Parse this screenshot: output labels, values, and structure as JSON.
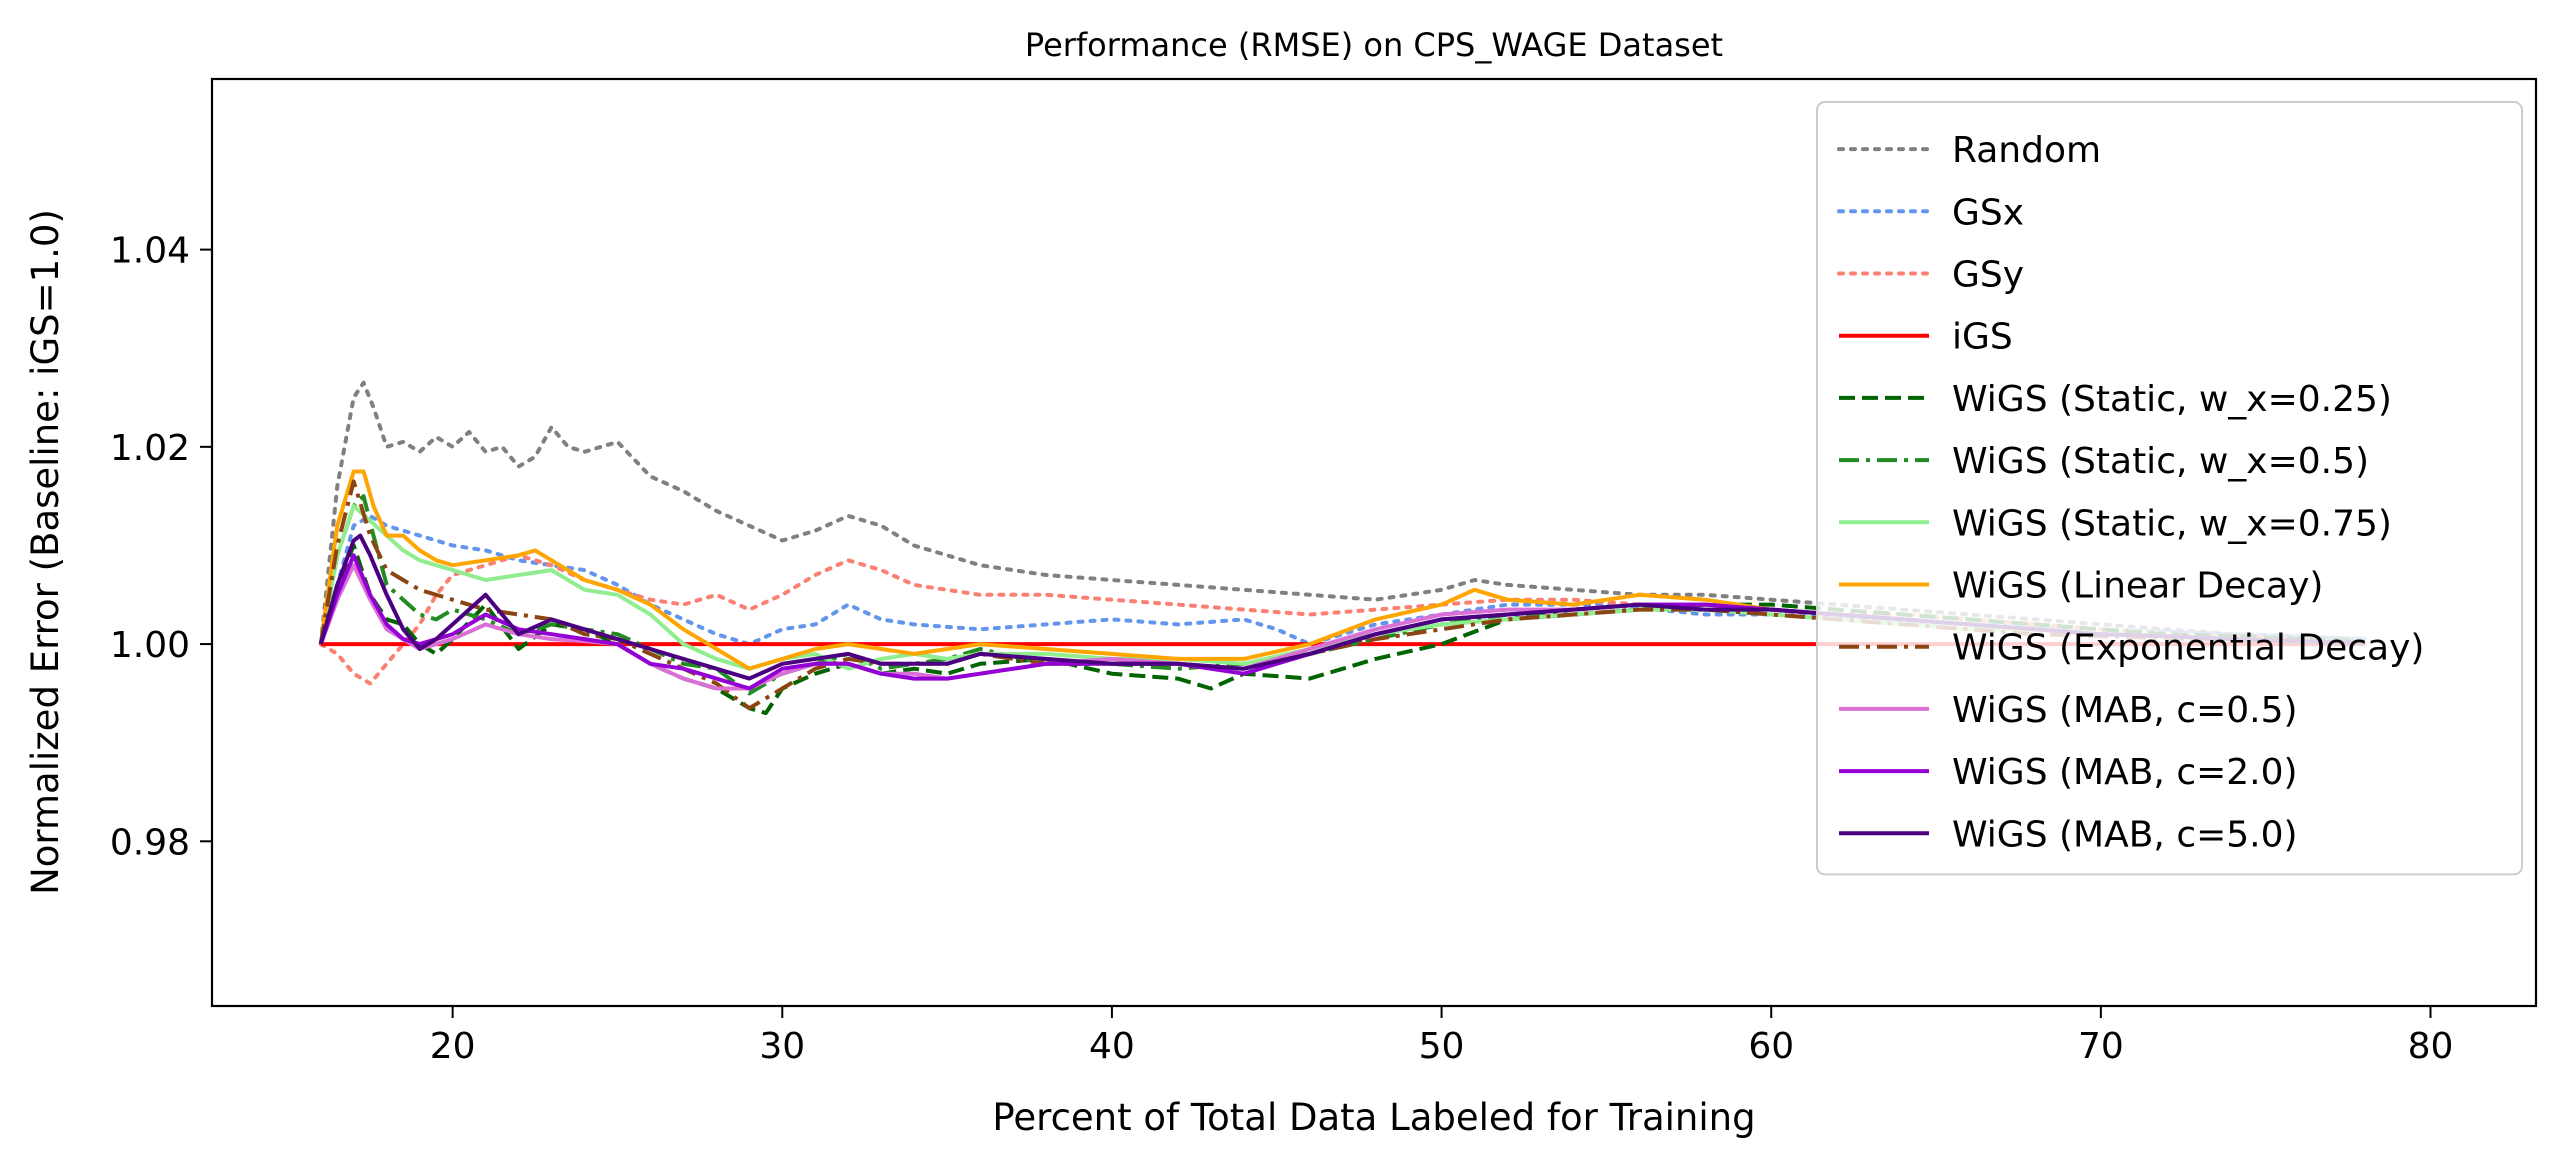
{
  "chart_data": {
    "type": "line",
    "title": "Performance (RMSE) on CPS_WAGE Dataset",
    "xlabel": "Percent of Total Data Labeled for Training",
    "ylabel": "Normalized Error (Baseline: iGS=1.0)",
    "xlim": [
      12.7,
      83.2
    ],
    "ylim": [
      0.9633,
      1.0573
    ],
    "xticks": [
      20,
      30,
      40,
      50,
      60,
      70,
      80
    ],
    "xtick_labels": [
      "20",
      "30",
      "40",
      "50",
      "60",
      "70",
      "80"
    ],
    "yticks": [
      0.98,
      1.0,
      1.02,
      1.04
    ],
    "ytick_labels": [
      "0.98",
      "1.00",
      "1.02",
      "1.04"
    ],
    "grid": false,
    "legend_position": "top-right",
    "series": [
      {
        "name": "Random",
        "color": "#808080",
        "dash": "dotted",
        "x": [
          16,
          16.5,
          17,
          17.3,
          17.6,
          18,
          18.5,
          19,
          19.5,
          20,
          20.5,
          21,
          21.5,
          22,
          22.5,
          23,
          23.5,
          24,
          25,
          26,
          27,
          28,
          29,
          30,
          31,
          32,
          33,
          34,
          35,
          36,
          38,
          40,
          42,
          44,
          46,
          48,
          50,
          51,
          52,
          54,
          56,
          58,
          60,
          62,
          64,
          66,
          68,
          70,
          72,
          74,
          76,
          78
        ],
        "y": [
          1.0,
          1.016,
          1.025,
          1.0265,
          1.024,
          1.02,
          1.0205,
          1.0195,
          1.021,
          1.02,
          1.0215,
          1.0195,
          1.02,
          1.018,
          1.019,
          1.022,
          1.02,
          1.0195,
          1.0205,
          1.017,
          1.0155,
          1.0135,
          1.012,
          1.0105,
          1.0115,
          1.013,
          1.012,
          1.01,
          1.009,
          1.008,
          1.007,
          1.0065,
          1.006,
          1.0055,
          1.005,
          1.0045,
          1.0055,
          1.0065,
          1.006,
          1.0055,
          1.005,
          1.005,
          1.0045,
          1.004,
          1.0035,
          1.003,
          1.0025,
          1.002,
          1.0015,
          1.001,
          1.0008,
          1.0005
        ]
      },
      {
        "name": "GSx",
        "color": "#6495ED",
        "dash": "dotted",
        "x": [
          16,
          16.5,
          17,
          17.5,
          18,
          19,
          20,
          21,
          22,
          23,
          24,
          25,
          26,
          27,
          28,
          29,
          30,
          31,
          32,
          33,
          34,
          36,
          38,
          40,
          42,
          44,
          45,
          46,
          48,
          50,
          52,
          55,
          58,
          60,
          63,
          66,
          70,
          74,
          78
        ],
        "y": [
          1.0,
          1.006,
          1.012,
          1.013,
          1.012,
          1.011,
          1.01,
          1.0095,
          1.0085,
          1.008,
          1.0075,
          1.006,
          1.004,
          1.0025,
          1.001,
          1.0,
          1.0015,
          1.002,
          1.004,
          1.0025,
          1.002,
          1.0015,
          1.002,
          1.0025,
          1.002,
          1.0025,
          1.0015,
          1.0,
          1.002,
          1.003,
          1.004,
          1.004,
          1.003,
          1.003,
          1.0025,
          1.002,
          1.0015,
          1.001,
          1.0005
        ]
      },
      {
        "name": "GSy",
        "color": "#FA8072",
        "dash": "dotted",
        "x": [
          16,
          16.5,
          17,
          17.5,
          18,
          18.5,
          19,
          19.5,
          20,
          21,
          22,
          23,
          24,
          25,
          26,
          27,
          28,
          29,
          30,
          31,
          32,
          33,
          34,
          36,
          38,
          40,
          42,
          44,
          46,
          48,
          50,
          52,
          54,
          56,
          58,
          60,
          62,
          64,
          66,
          68,
          70,
          72,
          74,
          76,
          78
        ],
        "y": [
          1.0,
          0.999,
          0.997,
          0.996,
          0.998,
          1.0,
          1.002,
          1.005,
          1.007,
          1.008,
          1.009,
          1.008,
          1.0065,
          1.0055,
          1.0045,
          1.004,
          1.005,
          1.0035,
          1.005,
          1.007,
          1.0085,
          1.0075,
          1.006,
          1.005,
          1.005,
          1.0045,
          1.004,
          1.0035,
          1.003,
          1.0035,
          1.004,
          1.0045,
          1.0045,
          1.004,
          1.004,
          1.0035,
          1.003,
          1.003,
          1.0025,
          1.002,
          1.0015,
          1.001,
          1.0008,
          1.0005,
          1.0
        ]
      },
      {
        "name": "iGS",
        "color": "#FF0000",
        "dash": "solid",
        "x": [
          16,
          78
        ],
        "y": [
          1.0,
          1.0
        ]
      },
      {
        "name": "WiGS (Static, w_x=0.25)",
        "color": "#006400",
        "dash": "dashed",
        "x": [
          16,
          16.5,
          17,
          17.5,
          18,
          18.5,
          19,
          19.5,
          20,
          21,
          22,
          23,
          24,
          25,
          26,
          27,
          28,
          29,
          29.5,
          30,
          31,
          32,
          33,
          34,
          35,
          36,
          38,
          40,
          42,
          43,
          44,
          46,
          48,
          50,
          52,
          54,
          56,
          58,
          60,
          62,
          64,
          66,
          68,
          70,
          72,
          74,
          76,
          78
        ],
        "y": [
          1.0,
          1.006,
          1.01,
          1.005,
          1.0025,
          1.002,
          1.0,
          0.999,
          1.0005,
          1.004,
          0.9995,
          1.002,
          1.0015,
          1.0,
          0.998,
          0.9965,
          0.9955,
          0.9935,
          0.993,
          0.9955,
          0.997,
          0.998,
          0.997,
          0.9975,
          0.997,
          0.998,
          0.9985,
          0.997,
          0.9965,
          0.9955,
          0.997,
          0.9965,
          0.9985,
          1.0,
          1.0025,
          1.003,
          1.0035,
          1.004,
          1.004,
          1.0035,
          1.003,
          1.0025,
          1.002,
          1.0015,
          1.001,
          1.0008,
          1.0005,
          1.0003
        ]
      },
      {
        "name": "WiGS (Static, w_x=0.5)",
        "color": "#228B22",
        "dash": "dashdot",
        "x": [
          16,
          16.5,
          17,
          17.3,
          17.6,
          18,
          18.5,
          19,
          19.5,
          20,
          21,
          22,
          23,
          24,
          25,
          26,
          27,
          28,
          29,
          30,
          31,
          32,
          33,
          34,
          35,
          36,
          38,
          40,
          42,
          44,
          46,
          48,
          50,
          52,
          54,
          56,
          58,
          60,
          62,
          64,
          66,
          68,
          70,
          72,
          74,
          76,
          78
        ],
        "y": [
          1.0,
          1.009,
          1.014,
          1.015,
          1.011,
          1.006,
          1.0045,
          1.003,
          1.0025,
          1.0035,
          1.0025,
          1.001,
          1.002,
          1.0015,
          1.001,
          0.9995,
          0.998,
          0.9975,
          0.995,
          0.997,
          0.998,
          0.999,
          0.9975,
          0.998,
          0.9985,
          0.9995,
          0.998,
          0.998,
          0.9975,
          0.998,
          0.999,
          1.0005,
          1.002,
          1.003,
          1.003,
          1.0035,
          1.004,
          1.0035,
          1.003,
          1.0025,
          1.002,
          1.0015,
          1.001,
          1.0008,
          1.0005,
          1.0003,
          1.0002
        ]
      },
      {
        "name": "WiGS (Static, w_x=0.75)",
        "color": "#90EE90",
        "dash": "solid",
        "x": [
          16,
          16.5,
          17,
          17.5,
          18,
          18.5,
          19,
          20,
          21,
          22,
          23,
          24,
          25,
          26,
          27,
          28,
          29,
          30,
          31,
          32,
          33,
          34,
          35,
          36,
          38,
          40,
          42,
          44,
          46,
          48,
          50,
          52,
          54,
          56,
          58,
          60,
          62,
          64,
          66,
          68,
          70,
          72,
          74,
          76,
          78
        ],
        "y": [
          1.0,
          1.009,
          1.014,
          1.0125,
          1.011,
          1.0095,
          1.0085,
          1.0075,
          1.0065,
          1.007,
          1.0075,
          1.0055,
          1.005,
          1.003,
          1.0,
          0.9985,
          0.9975,
          0.9985,
          0.999,
          0.9975,
          0.9985,
          0.999,
          0.9985,
          0.999,
          0.999,
          0.9985,
          0.9985,
          0.998,
          0.9995,
          1.001,
          1.002,
          1.0025,
          1.003,
          1.0035,
          1.0035,
          1.003,
          1.0025,
          1.002,
          1.0015,
          1.0015,
          1.001,
          1.0008,
          1.0005,
          1.0003,
          1.0001
        ]
      },
      {
        "name": "WiGS (Linear Decay)",
        "color": "#FFA500",
        "dash": "solid",
        "x": [
          16,
          16.5,
          17,
          17.3,
          17.6,
          18,
          18.5,
          19,
          19.5,
          20,
          21,
          22,
          22.5,
          23,
          24,
          25,
          26,
          27,
          28,
          29,
          30,
          31,
          32,
          33,
          34,
          35,
          36,
          38,
          40,
          42,
          44,
          46,
          48,
          50,
          51,
          52,
          54,
          56,
          58,
          60,
          62,
          64,
          66,
          68,
          70,
          72,
          74,
          76,
          78
        ],
        "y": [
          1.0,
          1.012,
          1.0175,
          1.0175,
          1.014,
          1.011,
          1.011,
          1.0095,
          1.0085,
          1.008,
          1.0085,
          1.009,
          1.0095,
          1.0085,
          1.0065,
          1.0055,
          1.004,
          1.0015,
          0.9995,
          0.9975,
          0.9985,
          0.9995,
          1.0,
          0.9995,
          0.999,
          0.9995,
          1.0,
          0.9995,
          0.999,
          0.9985,
          0.9985,
          1.0,
          1.0025,
          1.004,
          1.0055,
          1.0045,
          1.004,
          1.005,
          1.0045,
          1.0035,
          1.003,
          1.0025,
          1.002,
          1.0015,
          1.001,
          1.0008,
          1.0005,
          1.0003,
          1.0001
        ]
      },
      {
        "name": "WiGS (Exponential Decay)",
        "color": "#8B4513",
        "dash": "dashdot",
        "x": [
          16,
          16.5,
          17,
          17.5,
          18,
          18.5,
          19,
          20,
          21,
          22,
          23,
          24,
          25,
          26,
          27,
          28,
          29,
          30,
          31,
          32,
          33,
          34,
          35,
          36,
          38,
          40,
          42,
          44,
          46,
          48,
          50,
          52,
          54,
          56,
          58,
          60,
          62,
          64,
          66,
          68,
          70,
          72,
          74,
          76,
          78
        ],
        "y": [
          1.0,
          1.01,
          1.0165,
          1.011,
          1.0075,
          1.0065,
          1.0055,
          1.0045,
          1.0035,
          1.003,
          1.0025,
          1.001,
          1.0005,
          0.999,
          0.9975,
          0.996,
          0.9935,
          0.9955,
          0.9975,
          0.9985,
          0.998,
          0.998,
          0.998,
          0.999,
          0.998,
          0.998,
          0.998,
          0.9975,
          0.999,
          1.0005,
          1.0015,
          1.0025,
          1.003,
          1.0035,
          1.0035,
          1.003,
          1.0025,
          1.002,
          1.0015,
          1.001,
          1.0008,
          1.0006,
          1.0004,
          1.0002,
          1.0
        ]
      },
      {
        "name": "WiGS (MAB, c=0.5)",
        "color": "#DA70D6",
        "dash": "solid",
        "x": [
          16,
          16.5,
          17,
          17.5,
          18,
          18.5,
          19,
          20,
          21,
          22,
          23,
          24,
          25,
          26,
          27,
          28,
          29,
          30,
          31,
          32,
          33,
          34,
          35,
          36,
          38,
          40,
          42,
          44,
          46,
          48,
          50,
          52,
          54,
          56,
          58,
          60,
          62,
          64,
          66,
          68,
          70,
          72,
          74,
          76,
          78
        ],
        "y": [
          1.0,
          1.0045,
          1.008,
          1.0045,
          1.0015,
          1.0005,
          0.9995,
          1.0005,
          1.002,
          1.001,
          1.0005,
          1.0003,
          1.0,
          0.998,
          0.9965,
          0.9955,
          0.9955,
          0.997,
          0.998,
          0.998,
          0.997,
          0.997,
          0.9965,
          0.997,
          0.998,
          0.9985,
          0.998,
          0.9975,
          0.9995,
          1.0015,
          1.003,
          1.0035,
          1.0035,
          1.004,
          1.004,
          1.0035,
          1.003,
          1.0025,
          1.002,
          1.0015,
          1.001,
          1.0008,
          1.0005,
          1.0003,
          1.0001
        ]
      },
      {
        "name": "WiGS (MAB, c=2.0)",
        "color": "#9400D3",
        "dash": "solid",
        "x": [
          16,
          16.5,
          17,
          17.5,
          18,
          18.5,
          19,
          20,
          21,
          22,
          23,
          24,
          25,
          26,
          27,
          28,
          29,
          30,
          31,
          32,
          33,
          34,
          35,
          36,
          38,
          40,
          42,
          44,
          46,
          48,
          50,
          52,
          54,
          56,
          58,
          60,
          62,
          64,
          66,
          68,
          70,
          72,
          74,
          76,
          78
        ],
        "y": [
          1.0,
          1.005,
          1.009,
          1.005,
          1.002,
          1.0005,
          1.0,
          1.001,
          1.003,
          1.0015,
          1.001,
          1.0005,
          1.0,
          0.998,
          0.9975,
          0.9965,
          0.9955,
          0.9975,
          0.998,
          0.998,
          0.997,
          0.9965,
          0.9965,
          0.997,
          0.998,
          0.998,
          0.998,
          0.997,
          0.999,
          1.001,
          1.0025,
          1.003,
          1.0035,
          1.004,
          1.004,
          1.0035,
          1.003,
          1.0025,
          1.002,
          1.0015,
          1.001,
          1.0008,
          1.0005,
          1.0003,
          1.0001
        ]
      },
      {
        "name": "WiGS (MAB, c=5.0)",
        "color": "#4B0082",
        "dash": "solid",
        "x": [
          16,
          16.5,
          17,
          17.2,
          17.5,
          18,
          18.5,
          19,
          19.5,
          20,
          21,
          22,
          23,
          24,
          25,
          26,
          27,
          28,
          29,
          30,
          31,
          32,
          33,
          34,
          35,
          36,
          38,
          40,
          42,
          44,
          46,
          48,
          50,
          52,
          54,
          56,
          58,
          60,
          62,
          64,
          66,
          68,
          70,
          72,
          74,
          76,
          78
        ],
        "y": [
          1.0,
          1.006,
          1.0105,
          1.011,
          1.009,
          1.005,
          1.0015,
          0.9995,
          1.0005,
          1.002,
          1.005,
          1.001,
          1.0025,
          1.0015,
          1.0005,
          0.9995,
          0.9985,
          0.9975,
          0.9965,
          0.998,
          0.9985,
          0.999,
          0.998,
          0.998,
          0.998,
          0.999,
          0.9985,
          0.998,
          0.998,
          0.9975,
          0.999,
          1.001,
          1.0025,
          1.003,
          1.0035,
          1.004,
          1.0035,
          1.0035,
          1.003,
          1.0025,
          1.002,
          1.0015,
          1.001,
          1.0008,
          1.0005,
          1.0003,
          1.0001
        ]
      }
    ]
  }
}
